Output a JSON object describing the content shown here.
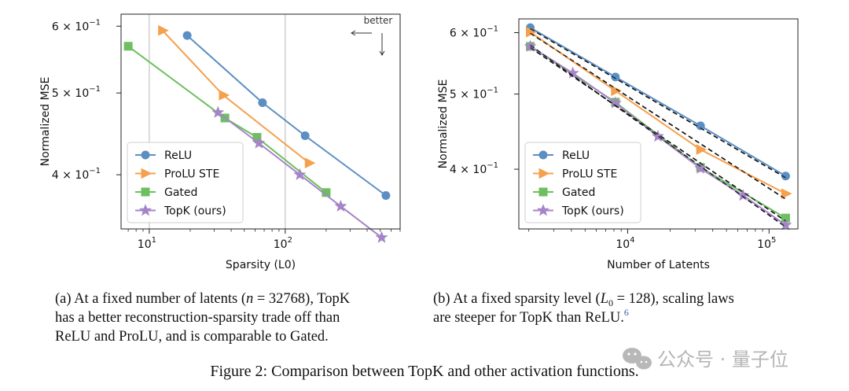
{
  "figure_caption": "Figure 2: Comparison between TopK and other activation functions.",
  "watermark": "公众号 · 量子位",
  "colors": {
    "ReLU": "#5b8fc3",
    "ProLU STE": "#f5a04c",
    "Gated": "#6dbf5f",
    "TopK (ours)": "#a585c8"
  },
  "chart_data": [
    {
      "type": "line",
      "caption_a": "(a) At a fixed number of latents (",
      "caption_b": "), TopK has a better reconstruction-sparsity trade off than ReLU and ProLU, and is comparable to Gated.",
      "caption_var": "n",
      "caption_eq": " = 32768",
      "xlabel": "Sparsity (L0)",
      "ylabel": "Normalized MSE",
      "xscale": "log",
      "yscale": "log",
      "xlim": [
        6.2,
        700
      ],
      "ylim": [
        0.345,
        0.62
      ],
      "xticks": [
        {
          "v": 10,
          "label": "10",
          "sup": "1"
        },
        {
          "v": 100,
          "label": "10",
          "sup": "2"
        }
      ],
      "yticks": [
        {
          "v": 0.6,
          "label": "6 × 10",
          "sup": "−1"
        },
        {
          "v": 0.5,
          "label": "5 × 10",
          "sup": "−1"
        },
        {
          "v": 0.4,
          "label": "4 × 10",
          "sup": "−1"
        }
      ],
      "vlines": [
        10,
        100
      ],
      "annotation": "better",
      "legend_position": "lower-left",
      "series": [
        {
          "name": "ReLU",
          "marker": "circle",
          "x": [
            19,
            68,
            140,
            550
          ],
          "y": [
            0.585,
            0.487,
            0.445,
            0.378
          ]
        },
        {
          "name": "ProLU STE",
          "marker": "triangle",
          "x": [
            12.5,
            35,
            150
          ],
          "y": [
            0.593,
            0.497,
            0.413
          ]
        },
        {
          "name": "Gated",
          "marker": "square",
          "x": [
            7,
            36,
            62,
            200
          ],
          "y": [
            0.568,
            0.467,
            0.443,
            0.381
          ]
        },
        {
          "name": "TopK (ours)",
          "marker": "star",
          "x": [
            32,
            64,
            128,
            256,
            512
          ],
          "y": [
            0.474,
            0.436,
            0.4,
            0.367,
            0.337
          ]
        }
      ]
    },
    {
      "type": "line",
      "caption_a": "(b) At a fixed sparsity level (",
      "caption_b": "), scaling laws are steeper for TopK than ReLU.",
      "caption_var": "L",
      "caption_sub": "0",
      "caption_eq": " = 128",
      "caption_footnote": "6",
      "xlabel": "Number of Latents",
      "ylabel": "Normalized MSE",
      "xscale": "log",
      "yscale": "log",
      "xlim": [
        1700,
        160000
      ],
      "ylim": [
        0.335,
        0.625
      ],
      "xticks": [
        {
          "v": 10000,
          "label": "10",
          "sup": "4"
        },
        {
          "v": 100000,
          "label": "10",
          "sup": "5"
        }
      ],
      "yticks": [
        {
          "v": 0.6,
          "label": "6 × 10",
          "sup": "−1"
        },
        {
          "v": 0.5,
          "label": "5 × 10",
          "sup": "−1"
        },
        {
          "v": 0.4,
          "label": "4 × 10",
          "sup": "−1"
        }
      ],
      "legend_position": "lower-left",
      "series": [
        {
          "name": "ReLU",
          "marker": "circle",
          "x": [
            2048,
            8192,
            32768,
            131072
          ],
          "y": [
            0.609,
            0.526,
            0.455,
            0.392
          ]
        },
        {
          "name": "ProLU STE",
          "marker": "triangle",
          "x": [
            2048,
            8192,
            32768,
            131072
          ],
          "y": [
            0.601,
            0.505,
            0.424,
            0.372
          ]
        },
        {
          "name": "Gated",
          "marker": "square",
          "x": [
            2048,
            8192,
            32768,
            131072
          ],
          "y": [
            0.576,
            0.488,
            0.402,
            0.346
          ]
        },
        {
          "name": "TopK (ours)",
          "marker": "star",
          "x": [
            2048,
            4096,
            8192,
            16384,
            32768,
            65536,
            131072
          ],
          "y": [
            0.576,
            0.532,
            0.487,
            0.441,
            0.401,
            0.37,
            0.339
          ]
        }
      ],
      "fits": [
        {
          "series": "ReLU",
          "x": [
            2048,
            131072
          ],
          "y": [
            0.607,
            0.39
          ]
        },
        {
          "series": "ProLU STE",
          "x": [
            2048,
            131072
          ],
          "y": [
            0.599,
            0.366
          ]
        },
        {
          "series": "Gated",
          "x": [
            2048,
            131072
          ],
          "y": [
            0.574,
            0.343
          ]
        },
        {
          "series": "TopK (ours)",
          "x": [
            2048,
            131072
          ],
          "y": [
            0.578,
            0.337
          ]
        }
      ]
    }
  ]
}
